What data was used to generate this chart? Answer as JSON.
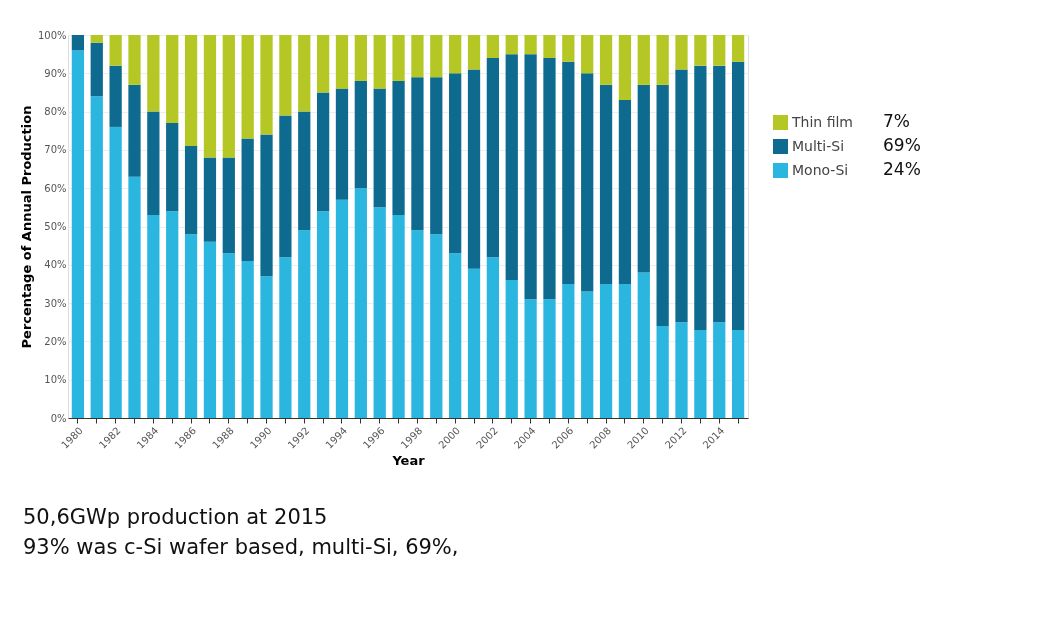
{
  "chart_data": {
    "type": "bar",
    "stacked": true,
    "xlabel": "Year",
    "ylabel": "Percentage of Annual Production",
    "categories": [
      "1980",
      null,
      "1982",
      null,
      "1984",
      null,
      "1986",
      null,
      "1988",
      null,
      "1990",
      null,
      "1992",
      null,
      "1994",
      null,
      "1996",
      null,
      "1998",
      null,
      "2000",
      null,
      "2002",
      null,
      "2004",
      null,
      "2006",
      null,
      "2008",
      null,
      "2010",
      null,
      "2012",
      null,
      "2014",
      null
    ],
    "series": [
      {
        "name": "Mono-Si",
        "color": "#2bb6e0",
        "values": [
          96,
          84,
          76,
          63,
          53,
          54,
          48,
          46,
          43,
          41,
          37,
          42,
          49,
          54,
          57,
          60,
          55,
          53,
          49,
          48,
          43,
          39,
          42,
          36,
          31,
          31,
          35,
          33,
          35,
          35,
          38,
          24,
          25,
          23,
          25,
          23
        ]
      },
      {
        "name": "Multi-Si",
        "color": "#0e6b8f",
        "values": [
          4,
          14,
          16,
          24,
          27,
          23,
          23,
          22,
          25,
          32,
          37,
          37,
          31,
          31,
          29,
          28,
          31,
          35,
          40,
          41,
          47,
          52,
          52,
          59,
          64,
          63,
          58,
          57,
          52,
          48,
          49,
          63,
          66,
          69,
          67,
          70
        ]
      },
      {
        "name": "Thin film",
        "color": "#b5c724",
        "values": [
          0,
          2,
          8,
          13,
          20,
          23,
          29,
          32,
          32,
          27,
          26,
          21,
          20,
          15,
          14,
          12,
          14,
          12,
          11,
          11,
          10,
          9,
          6,
          5,
          5,
          6,
          7,
          10,
          13,
          17,
          13,
          13,
          9,
          8,
          8,
          7
        ]
      }
    ],
    "ylim": [
      0,
      100
    ],
    "yticks": [
      {
        "value": 0,
        "label": "0%"
      },
      {
        "value": 10,
        "label": "10%"
      },
      {
        "value": 20,
        "label": "20%"
      },
      {
        "value": 30,
        "label": "30%"
      },
      {
        "value": 40,
        "label": "40%"
      },
      {
        "value": 50,
        "label": "50%"
      },
      {
        "value": 60,
        "label": "60%"
      },
      {
        "value": 70,
        "label": "70%"
      },
      {
        "value": 80,
        "label": "80%"
      },
      {
        "value": 90,
        "label": "90%"
      },
      {
        "value": 100,
        "label": "100%"
      }
    ],
    "grid": "y",
    "legend": "right",
    "annotations": [
      "24%",
      "69%",
      "7%",
      "50,6GWp production at 2015",
      "93% was c-Si wafer based, multi-Si, 69%,"
    ]
  }
}
